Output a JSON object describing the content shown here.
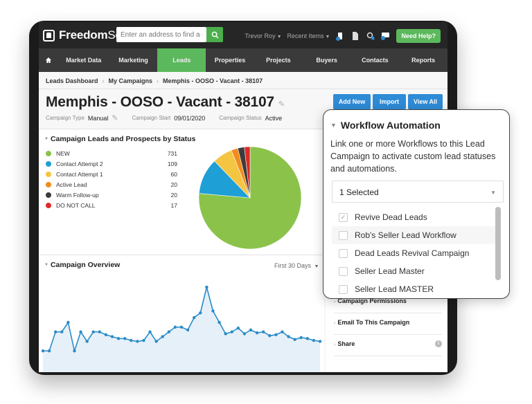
{
  "brand": {
    "name_bold": "Freedom",
    "name_light": "Soft"
  },
  "search": {
    "placeholder": "Enter an address to find a deal"
  },
  "topbar": {
    "user": "Trevor Roy",
    "recent": "Recent Items",
    "help": "Need Help?"
  },
  "nav": [
    {
      "label": "Market Data"
    },
    {
      "label": "Marketing"
    },
    {
      "label": "Leads",
      "active": true
    },
    {
      "label": "Properties"
    },
    {
      "label": "Projects"
    },
    {
      "label": "Buyers"
    },
    {
      "label": "Contacts"
    },
    {
      "label": "Reports"
    }
  ],
  "breadcrumb": [
    "Leads Dashboard",
    "My Campaigns",
    "Memphis - OOSO - Vacant - 38107"
  ],
  "campaign": {
    "title": "Memphis - OOSO - Vacant - 38107",
    "type_label": "Campaign Type",
    "type_value": "Manual",
    "start_label": "Campaign Start",
    "start_value": "09/01/2020",
    "status_label": "Campaign Status",
    "status_value": "Active"
  },
  "actions": {
    "add_new": "Add New",
    "import": "Import",
    "view_all": "View All"
  },
  "leads_panel": {
    "title": "Campaign Leads and Prospects by Status"
  },
  "overview_panel": {
    "title": "Campaign Overview",
    "period": "First 30 Days"
  },
  "sidebar": {
    "items": [
      {
        "label": "Campaign Permissions"
      },
      {
        "label": "Email To This Campaign"
      },
      {
        "label": "Share"
      }
    ]
  },
  "workflow": {
    "title": "Workflow Automation",
    "description": "Link one or more Workflows to this Lead Campaign to activate custom lead statuses and automations.",
    "selected": "1 Selected",
    "options": [
      {
        "label": "Revive Dead Leads",
        "checked": true
      },
      {
        "label": "Rob's Seller Lead Workflow",
        "checked": false
      },
      {
        "label": "Dead Leads Revival Campaign",
        "checked": false
      },
      {
        "label": "Seller Lead Master",
        "checked": false
      },
      {
        "label": "Seller Lead MASTER",
        "checked": false
      }
    ]
  },
  "colors": {
    "accent_green": "#5cb85c",
    "button_blue": "#2e8bd6",
    "line_blue": "#2a8bc7",
    "area_fill": "#e6f0f8"
  },
  "chart_data": [
    {
      "type": "pie",
      "series": [
        {
          "name": "NEW",
          "value": 731,
          "color": "#8bc34a"
        },
        {
          "name": "Contact Attempt 2",
          "value": 109,
          "color": "#1e9fd6"
        },
        {
          "name": "Contact Attempt 1",
          "value": 60,
          "color": "#f4c542"
        },
        {
          "name": "Active Lead",
          "value": 20,
          "color": "#f28c1e"
        },
        {
          "name": "Warm Follow-up",
          "value": 20,
          "color": "#3c3c3c"
        },
        {
          "name": "DO NOT CALL",
          "value": 17,
          "color": "#e02828"
        }
      ]
    },
    {
      "type": "line",
      "x": [
        1,
        2,
        3,
        4,
        5,
        6,
        7,
        8,
        9,
        10,
        11,
        12,
        13,
        14,
        15,
        16,
        17,
        18,
        19,
        20,
        21,
        22,
        23,
        24,
        25,
        26,
        27,
        28,
        29,
        30,
        31,
        32,
        33,
        34,
        35,
        36,
        37,
        38,
        39,
        40,
        41,
        42,
        43,
        44,
        45
      ],
      "values": [
        1,
        1,
        3,
        3,
        4,
        1,
        3,
        2,
        3,
        3,
        2.7,
        2.5,
        2.3,
        2.3,
        2.1,
        2,
        2.1,
        3,
        2,
        2.5,
        3,
        3.5,
        3.5,
        3.2,
        4.5,
        5,
        7.7,
        5.2,
        4,
        2.8,
        3,
        3.4,
        2.8,
        3.2,
        2.9,
        3,
        2.6,
        2.7,
        3,
        2.5,
        2.2,
        2.4,
        2.3,
        2.1,
        2
      ],
      "ylim": [
        0,
        8
      ]
    }
  ]
}
